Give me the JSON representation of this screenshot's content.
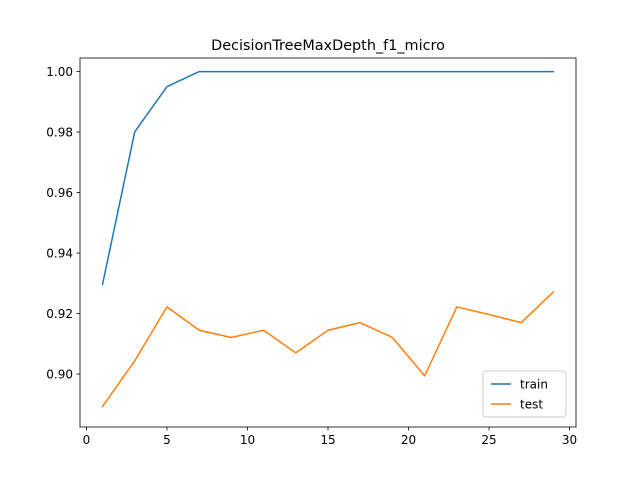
{
  "chart_data": {
    "type": "line",
    "title": "DecisionTreeMaxDepth_f1_micro",
    "xlabel": "",
    "ylabel": "",
    "x": [
      1,
      3,
      5,
      7,
      9,
      11,
      13,
      15,
      17,
      19,
      21,
      23,
      25,
      27,
      29
    ],
    "xlim": [
      -0.4,
      30.4
    ],
    "ylim": [
      0.8825,
      1.0045
    ],
    "xticks": [
      0,
      5,
      10,
      15,
      20,
      25,
      30
    ],
    "xtick_labels": [
      "0",
      "5",
      "10",
      "15",
      "20",
      "25",
      "30"
    ],
    "yticks": [
      0.9,
      0.92,
      0.94,
      0.96,
      0.98,
      1.0
    ],
    "ytick_labels": [
      "0.90",
      "0.92",
      "0.94",
      "0.96",
      "0.98",
      "1.00"
    ],
    "grid": false,
    "legend_position": "lower-right",
    "series": [
      {
        "name": "train",
        "color": "#1f77b4",
        "values": [
          0.9297,
          0.9801,
          0.995,
          1.0,
          1.0,
          1.0,
          1.0,
          1.0,
          1.0,
          1.0,
          1.0,
          1.0,
          1.0,
          1.0,
          1.0
        ]
      },
      {
        "name": "test",
        "color": "#ff7f0e",
        "values": [
          0.8893,
          0.9044,
          0.9222,
          0.9145,
          0.9121,
          0.9145,
          0.907,
          0.9145,
          0.917,
          0.9121,
          0.8994,
          0.9222,
          0.9197,
          0.917,
          0.9272
        ]
      }
    ]
  }
}
